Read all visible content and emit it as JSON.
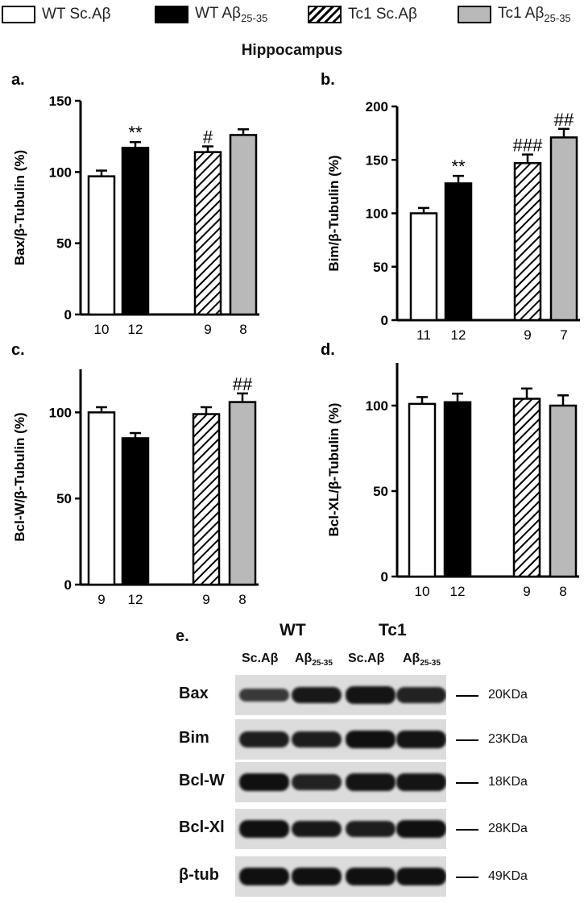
{
  "legend": [
    {
      "label": "WT Sc.Aβ",
      "fill": "white"
    },
    {
      "label": "WT Aβ",
      "sub": "25-35",
      "fill": "black"
    },
    {
      "label": "Tc1 Sc.Aβ",
      "fill": "hatch"
    },
    {
      "label": "Tc1 Aβ",
      "sub": "25-35",
      "fill": "gray"
    }
  ],
  "suptitle": "Hippocampus",
  "colors": {
    "gray": "#b9b9b9",
    "black": "#000000",
    "white": "#ffffff"
  },
  "chart_data": [
    {
      "type": "bar",
      "panel": "a.",
      "ylabel": "Bax/β-Tubulin (%)",
      "ylim": [
        0,
        150
      ],
      "yticks": [
        0,
        50,
        100,
        150
      ],
      "categories": [
        "WT Sc.Aβ",
        "WT Aβ25-35",
        "Tc1 Sc.Aβ",
        "Tc1 Aβ25-35"
      ],
      "values": [
        97,
        117,
        114,
        126
      ],
      "errors": [
        4,
        4,
        4,
        4
      ],
      "n": [
        "10",
        "12",
        "9",
        "8"
      ],
      "annotations": [
        "",
        "**",
        "#",
        ""
      ]
    },
    {
      "type": "bar",
      "panel": "b.",
      "ylabel": "Bim/β-Tubulin (%)",
      "ylim": [
        0,
        200
      ],
      "yticks": [
        0,
        50,
        100,
        150,
        200
      ],
      "categories": [
        "WT Sc.Aβ",
        "WT Aβ25-35",
        "Tc1 Sc.Aβ",
        "Tc1 Aβ25-35"
      ],
      "values": [
        100,
        128,
        147,
        171
      ],
      "errors": [
        5,
        7,
        8,
        8
      ],
      "n": [
        "11",
        "12",
        "9",
        "7"
      ],
      "annotations": [
        "",
        "**",
        "###",
        "##"
      ]
    },
    {
      "type": "bar",
      "panel": "c.",
      "ylabel": "Bcl-W/β-Tubulin (%)",
      "ylim": [
        0,
        125
      ],
      "yticks": [
        0,
        50,
        100
      ],
      "categories": [
        "WT Sc.Aβ",
        "WT Aβ25-35",
        "Tc1 Sc.Aβ",
        "Tc1 Aβ25-35"
      ],
      "values": [
        100,
        85,
        99,
        106
      ],
      "errors": [
        3,
        3,
        4,
        5
      ],
      "n": [
        "9",
        "12",
        "9",
        "8"
      ],
      "annotations": [
        "",
        "",
        "",
        "##"
      ]
    },
    {
      "type": "bar",
      "panel": "d.",
      "ylabel": "Bcl-XL/β-Tubulin (%)",
      "ylim": [
        0,
        125
      ],
      "yticks": [
        0,
        50,
        100
      ],
      "categories": [
        "WT Sc.Aβ",
        "WT Aβ25-35",
        "Tc1 Sc.Aβ",
        "Tc1 Aβ25-35"
      ],
      "values": [
        101,
        102,
        104,
        100
      ],
      "errors": [
        4,
        5,
        6,
        6
      ],
      "n": [
        "10",
        "12",
        "9",
        "8"
      ],
      "annotations": [
        "",
        "",
        "",
        ""
      ]
    }
  ],
  "blot": {
    "panel": "e.",
    "groups": [
      "WT",
      "Tc1"
    ],
    "lanes": [
      {
        "text": "Sc.Aβ",
        "sub": ""
      },
      {
        "text": "Aβ",
        "sub": "25-35"
      },
      {
        "text": "Sc.Aβ",
        "sub": ""
      },
      {
        "text": "Aβ",
        "sub": "25-35"
      }
    ],
    "rows": [
      {
        "label": "Bax",
        "kda": "20KDa",
        "intensity": [
          0.55,
          0.9,
          0.95,
          0.8
        ]
      },
      {
        "label": "Bim",
        "kda": "23KDa",
        "intensity": [
          0.85,
          0.85,
          1.0,
          0.95
        ]
      },
      {
        "label": "Bcl-W",
        "kda": "18KDa",
        "intensity": [
          1.0,
          0.8,
          0.95,
          0.95
        ]
      },
      {
        "label": "Bcl-Xl",
        "kda": "28KDa",
        "intensity": [
          1.0,
          0.9,
          0.85,
          1.0
        ]
      },
      {
        "label": "β-tub",
        "kda": "49KDa",
        "intensity": [
          1.0,
          1.0,
          1.0,
          1.0
        ]
      }
    ]
  }
}
